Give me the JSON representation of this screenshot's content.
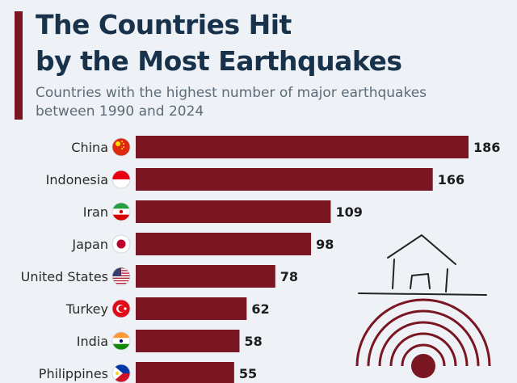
{
  "title_line1": "The Countries Hit",
  "title_line2": "by the Most Earthquakes",
  "subtitle_line1": "Countries with the highest number of major earthquakes",
  "subtitle_line2": "between 1990 and 2024",
  "colors": {
    "accent": "#7a1522",
    "bar": "#7a1522",
    "title": "#17324a",
    "label": "#2a2a2a",
    "background": "#eef2f6"
  },
  "chart_data": {
    "type": "bar",
    "orientation": "horizontal",
    "title": "The Countries Hit by the Most Earthquakes",
    "subtitle": "Countries with the highest number of major earthquakes between 1990 and 2024",
    "categories": [
      "China",
      "Indonesia",
      "Iran",
      "Japan",
      "United States",
      "Turkey",
      "India",
      "Philippines"
    ],
    "values": [
      186,
      166,
      109,
      98,
      78,
      62,
      58,
      55
    ],
    "flags": [
      "china-flag-icon",
      "indonesia-flag-icon",
      "iran-flag-icon",
      "japan-flag-icon",
      "us-flag-icon",
      "turkey-flag-icon",
      "india-flag-icon",
      "philippines-flag-icon"
    ],
    "xlim": [
      0,
      186
    ],
    "xlabel": "",
    "ylabel": "",
    "grid": false,
    "legend": "none"
  }
}
